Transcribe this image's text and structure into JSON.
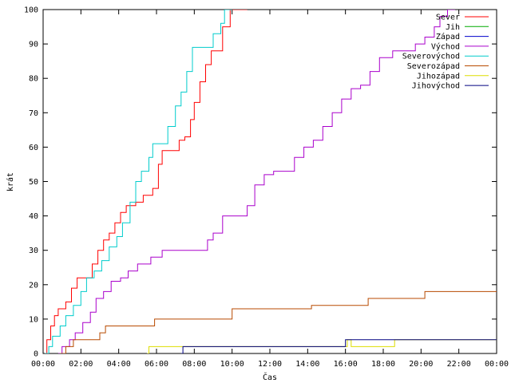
{
  "chart_data": {
    "type": "line",
    "xlabel": "Čas",
    "ylabel": "krát",
    "xlim": [
      0,
      24
    ],
    "ylim": [
      0,
      100
    ],
    "x_ticks": [
      "00:00",
      "02:00",
      "04:00",
      "06:00",
      "08:00",
      "10:00",
      "12:00",
      "14:00",
      "16:00",
      "18:00",
      "20:00",
      "22:00",
      "00:00"
    ],
    "y_ticks": [
      0,
      10,
      20,
      30,
      40,
      50,
      60,
      70,
      80,
      90,
      100
    ],
    "legend_position": "top-right",
    "grid": false,
    "series": [
      {
        "name": "Sever",
        "color": "#ff0000",
        "points": [
          [
            0.1,
            0
          ],
          [
            0.2,
            4
          ],
          [
            0.4,
            8
          ],
          [
            0.6,
            11
          ],
          [
            0.8,
            13
          ],
          [
            1.2,
            15
          ],
          [
            1.5,
            19
          ],
          [
            1.8,
            22
          ],
          [
            2.3,
            22
          ],
          [
            2.6,
            26
          ],
          [
            2.9,
            30
          ],
          [
            3.2,
            33
          ],
          [
            3.5,
            35
          ],
          [
            3.8,
            38
          ],
          [
            4.1,
            41
          ],
          [
            4.4,
            43
          ],
          [
            4.9,
            44
          ],
          [
            5.3,
            46
          ],
          [
            5.8,
            48
          ],
          [
            6.1,
            55
          ],
          [
            6.3,
            59
          ],
          [
            6.8,
            59
          ],
          [
            7.2,
            62
          ],
          [
            7.5,
            63
          ],
          [
            7.8,
            68
          ],
          [
            8.0,
            73
          ],
          [
            8.3,
            79
          ],
          [
            8.6,
            84
          ],
          [
            8.9,
            88
          ],
          [
            9.2,
            88
          ],
          [
            9.5,
            95
          ],
          [
            9.9,
            100
          ],
          [
            10.8,
            100
          ]
        ]
      },
      {
        "name": "Jih",
        "color": "#00aa00",
        "points": []
      },
      {
        "name": "Západ",
        "color": "#0000cc",
        "points": []
      },
      {
        "name": "Východ",
        "color": "#aa00cc",
        "points": [
          [
            0.8,
            0
          ],
          [
            1.0,
            2
          ],
          [
            1.4,
            4
          ],
          [
            1.7,
            6
          ],
          [
            2.1,
            9
          ],
          [
            2.5,
            12
          ],
          [
            2.8,
            16
          ],
          [
            3.2,
            18
          ],
          [
            3.6,
            21
          ],
          [
            4.1,
            22
          ],
          [
            4.5,
            24
          ],
          [
            5.0,
            26
          ],
          [
            5.7,
            28
          ],
          [
            6.3,
            30
          ],
          [
            7.0,
            30
          ],
          [
            8.5,
            30
          ],
          [
            8.7,
            33
          ],
          [
            9.0,
            35
          ],
          [
            9.5,
            40
          ],
          [
            10.5,
            40
          ],
          [
            10.8,
            43
          ],
          [
            11.2,
            49
          ],
          [
            11.7,
            52
          ],
          [
            12.2,
            53
          ],
          [
            13.0,
            53
          ],
          [
            13.3,
            57
          ],
          [
            13.8,
            60
          ],
          [
            14.3,
            62
          ],
          [
            14.8,
            66
          ],
          [
            15.3,
            70
          ],
          [
            15.8,
            74
          ],
          [
            16.3,
            77
          ],
          [
            16.8,
            78
          ],
          [
            17.3,
            82
          ],
          [
            17.8,
            86
          ],
          [
            18.5,
            88
          ],
          [
            19.3,
            88
          ],
          [
            19.7,
            90
          ],
          [
            20.2,
            92
          ],
          [
            20.7,
            95
          ],
          [
            21.0,
            98
          ],
          [
            21.4,
            100
          ],
          [
            21.8,
            100
          ]
        ]
      },
      {
        "name": "Severovýchod",
        "color": "#00cccc",
        "points": [
          [
            0.1,
            0
          ],
          [
            0.3,
            2
          ],
          [
            0.5,
            5
          ],
          [
            0.9,
            8
          ],
          [
            1.2,
            11
          ],
          [
            1.6,
            14
          ],
          [
            2.0,
            18
          ],
          [
            2.3,
            22
          ],
          [
            2.7,
            24
          ],
          [
            3.1,
            27
          ],
          [
            3.5,
            31
          ],
          [
            3.9,
            34
          ],
          [
            4.2,
            38
          ],
          [
            4.6,
            44
          ],
          [
            4.9,
            50
          ],
          [
            5.2,
            53
          ],
          [
            5.6,
            57
          ],
          [
            5.8,
            61
          ],
          [
            6.3,
            61
          ],
          [
            6.6,
            66
          ],
          [
            7.0,
            72
          ],
          [
            7.3,
            76
          ],
          [
            7.6,
            82
          ],
          [
            7.9,
            89
          ],
          [
            8.6,
            89
          ],
          [
            9.0,
            93
          ],
          [
            9.4,
            96
          ],
          [
            9.6,
            100
          ],
          [
            10.0,
            100
          ]
        ]
      },
      {
        "name": "Severozápad",
        "color": "#b84a00",
        "points": [
          [
            0.9,
            0
          ],
          [
            1.2,
            2
          ],
          [
            1.6,
            4
          ],
          [
            2.6,
            4
          ],
          [
            3.0,
            6
          ],
          [
            3.3,
            8
          ],
          [
            5.5,
            8
          ],
          [
            5.9,
            10
          ],
          [
            9.8,
            10
          ],
          [
            10.0,
            13
          ],
          [
            13.8,
            13
          ],
          [
            14.2,
            14
          ],
          [
            16.9,
            14
          ],
          [
            17.2,
            16
          ],
          [
            19.8,
            16
          ],
          [
            20.2,
            18
          ],
          [
            24.0,
            18
          ]
        ]
      },
      {
        "name": "Jihozápad",
        "color": "#dddd00",
        "points": [
          [
            5.5,
            0
          ],
          [
            5.6,
            2
          ],
          [
            15.9,
            2
          ],
          [
            16.1,
            4
          ],
          [
            16.3,
            2
          ],
          [
            18.5,
            2
          ],
          [
            18.6,
            4
          ],
          [
            24.0,
            4
          ]
        ]
      },
      {
        "name": "Jihovýchod",
        "color": "#000080",
        "points": [
          [
            7.3,
            0
          ],
          [
            7.4,
            2
          ],
          [
            15.9,
            2
          ],
          [
            16.0,
            4
          ],
          [
            24.0,
            4
          ]
        ]
      }
    ]
  }
}
